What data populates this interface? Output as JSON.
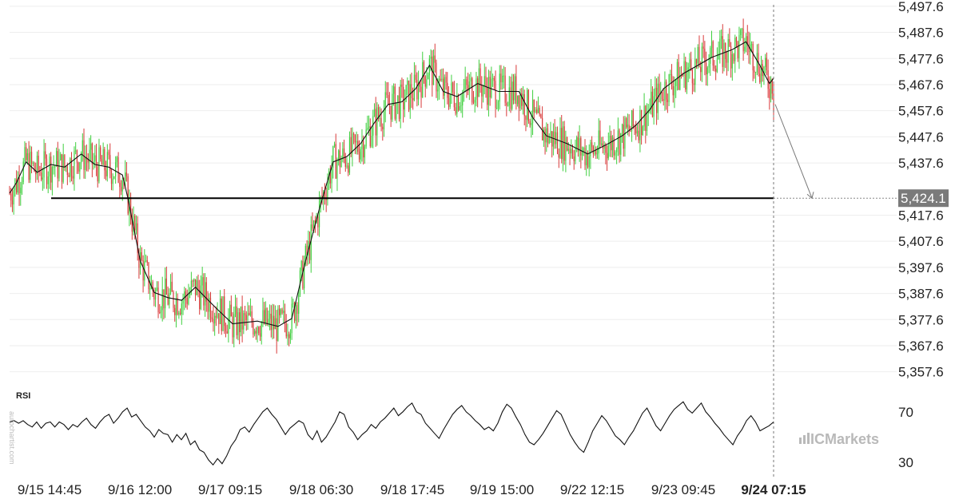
{
  "chart_data": {
    "type": "candlestick",
    "price_panel": {
      "y_ticks": [
        "5,497.6",
        "5,487.6",
        "5,477.6",
        "5,467.6",
        "5,457.6",
        "5,447.6",
        "5,437.6",
        "5,417.6",
        "5,407.6",
        "5,397.6",
        "5,387.6",
        "5,377.6",
        "5,367.6",
        "5,357.6"
      ],
      "ylim": [
        5352,
        5500
      ],
      "grid": true,
      "support_level": 5424.1,
      "support_label": "5,424.1",
      "projection_target": 5424.1,
      "last_close": 5457
    },
    "x_ticks": [
      "9/15 14:45",
      "9/16 12:00",
      "9/17 09:15",
      "9/18 06:30",
      "9/18 17:45",
      "9/19 15:00",
      "9/22 12:15",
      "9/23 09:45",
      "9/24 07:15"
    ],
    "current_time_label": "9/24 07:15",
    "moving_average_path": [
      [
        0,
        5426
      ],
      [
        5,
        5430
      ],
      [
        12,
        5438
      ],
      [
        20,
        5434
      ],
      [
        30,
        5437
      ],
      [
        40,
        5436
      ],
      [
        52,
        5441
      ],
      [
        62,
        5437
      ],
      [
        72,
        5436
      ],
      [
        82,
        5433
      ],
      [
        86,
        5424
      ],
      [
        95,
        5400
      ],
      [
        105,
        5388
      ],
      [
        115,
        5386
      ],
      [
        125,
        5385
      ],
      [
        135,
        5390
      ],
      [
        150,
        5382
      ],
      [
        162,
        5376
      ],
      [
        180,
        5377
      ],
      [
        195,
        5375
      ],
      [
        205,
        5378
      ],
      [
        215,
        5400
      ],
      [
        225,
        5420
      ],
      [
        235,
        5438
      ],
      [
        245,
        5440
      ],
      [
        255,
        5445
      ],
      [
        265,
        5453
      ],
      [
        275,
        5460
      ],
      [
        285,
        5461
      ],
      [
        295,
        5466
      ],
      [
        305,
        5475
      ],
      [
        315,
        5465
      ],
      [
        325,
        5463
      ],
      [
        340,
        5468
      ],
      [
        355,
        5465
      ],
      [
        370,
        5465
      ],
      [
        380,
        5455
      ],
      [
        390,
        5448
      ],
      [
        405,
        5445
      ],
      [
        420,
        5441
      ],
      [
        435,
        5445
      ],
      [
        445,
        5448
      ],
      [
        455,
        5452
      ],
      [
        465,
        5458
      ],
      [
        475,
        5466
      ],
      [
        490,
        5472
      ],
      [
        510,
        5478
      ],
      [
        525,
        5481
      ],
      [
        535,
        5484
      ],
      [
        545,
        5475
      ],
      [
        552,
        5468
      ],
      [
        555,
        5470
      ]
    ],
    "candles_t_range": [
      0,
      555
    ],
    "series": [
      {
        "name": "RSI",
        "ylim": [
          20,
          80
        ],
        "levels": [
          70,
          30
        ],
        "level_labels": [
          "70",
          "30"
        ],
        "values": [
          62,
          63,
          61,
          63,
          60,
          58,
          62,
          57,
          61,
          62,
          58,
          62,
          60,
          56,
          60,
          58,
          62,
          65,
          60,
          57,
          62,
          66,
          68,
          61,
          65,
          70,
          73,
          66,
          68,
          63,
          58,
          55,
          50,
          56,
          53,
          52,
          46,
          52,
          48,
          53,
          44,
          47,
          40,
          38,
          32,
          28,
          33,
          29,
          35,
          43,
          48,
          56,
          58,
          54,
          60,
          65,
          70,
          73,
          68,
          64,
          58,
          52,
          57,
          60,
          63,
          61,
          52,
          48,
          55,
          46,
          50,
          56,
          62,
          70,
          68,
          58,
          54,
          48,
          52,
          55,
          60,
          57,
          62,
          65,
          69,
          73,
          67,
          70,
          74,
          77,
          70,
          68,
          61,
          57,
          53,
          49,
          56,
          62,
          68,
          72,
          75,
          70,
          67,
          63,
          60,
          56,
          58,
          55,
          61,
          70,
          76,
          73,
          66,
          60,
          52,
          46,
          44,
          48,
          53,
          59,
          65,
          71,
          68,
          60,
          52,
          46,
          41,
          38,
          46,
          55,
          61,
          67,
          63,
          57,
          51,
          48,
          44,
          50,
          55,
          62,
          69,
          73,
          66,
          59,
          55,
          61,
          67,
          72,
          75,
          78,
          72,
          69,
          73,
          77,
          70,
          66,
          61,
          57,
          52,
          48,
          44,
          51,
          56,
          63,
          67,
          62,
          55,
          57,
          59,
          62
        ]
      }
    ]
  },
  "rsi_label": "RSI",
  "watermark": "aurochartist.com",
  "brand": "ICMarkets",
  "colors": {
    "bull": "#3fcf3f",
    "bear": "#d83a3a",
    "line": "#111111",
    "grid": "#eeeeee",
    "tag": "#7a7a7a"
  }
}
